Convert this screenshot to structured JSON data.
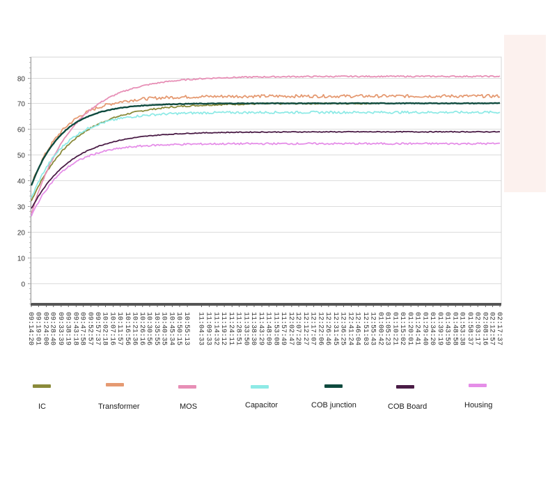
{
  "chart_data": {
    "type": "line",
    "title": "",
    "xlabel": "",
    "ylabel": "",
    "ylim": [
      -8,
      88
    ],
    "yticks": [
      0,
      10,
      20,
      30,
      40,
      50,
      60,
      70,
      80
    ],
    "grid": true,
    "legend_position": "bottom",
    "x_tick_labels": [
      "09:14:20",
      "09:19:01",
      "09:24:00",
      "09:28:40",
      "09:33:39",
      "09:38:19",
      "09:43:18",
      "09:47:58",
      "09:52:57",
      "09:57:37",
      "10:02:18",
      "10:07:16",
      "10:11:57",
      "10:16:56",
      "10:21:36",
      "10:26:16",
      "10:30:56",
      "10:35:55",
      "10:40:35",
      "10:45:34",
      "10:50:15",
      "10:55:13",
      "11:04:33",
      "11:09:33",
      "11:14:32",
      "11:19:12",
      "11:24:11",
      "11:28:51",
      "11:33:50",
      "11:38:30",
      "11:43:29",
      "11:48:09",
      "11:53:08",
      "11:57:49",
      "12:02:47",
      "12:07:28",
      "12:12:27",
      "12:17:07",
      "12:22:06",
      "12:26:46",
      "12:31:45",
      "12:36:25",
      "12:41:24",
      "12:46:04",
      "12:51:03",
      "12:55:43",
      "01:00:42",
      "01:05:23",
      "01:10:21",
      "01:15:02",
      "01:20:01",
      "01:24:41",
      "01:29:40",
      "01:34:20",
      "01:39:19",
      "01:43:59",
      "01:48:58",
      "01:53:38",
      "01:58:37",
      "02:03:17",
      "02:08:16",
      "02:12:57",
      "02:17:37"
    ],
    "x_tick_minutes_since_start": [
      0,
      4.7,
      9.7,
      14.3,
      19.3,
      24,
      29,
      33.6,
      38.6,
      43.3,
      48,
      53,
      57.6,
      62.6,
      67.3,
      72,
      76.6,
      81.6,
      86.3,
      91.2,
      96,
      101,
      110.2,
      115.2,
      120.2,
      124.9,
      129.9,
      134.5,
      139.5,
      144.2,
      149.2,
      153.8,
      158.8,
      163.5,
      168.5,
      173.1,
      178.1,
      182.8,
      187.8,
      192.4,
      197.4,
      202.1,
      207.1,
      211.7,
      216.7,
      221.4,
      226.4,
      231,
      236,
      240.7,
      245.7,
      250.4,
      255.3,
      260,
      265,
      269.7,
      274.6,
      279.3,
      284.3,
      289,
      294,
      298.6,
      303.3
    ],
    "series": [
      {
        "name": "IC",
        "color": "#8a8a3a",
        "start": 32,
        "end": 70,
        "tau": 28,
        "noise": 0.3,
        "stop_minute": 225,
        "line_width": 1.8
      },
      {
        "name": "Transformer",
        "color": "#e59a72",
        "start": 38,
        "end": 72.8,
        "tau": 21,
        "noise": 0.6,
        "stop_minute": 303.3,
        "line_width": 1.8
      },
      {
        "name": "MOS",
        "color": "#e78fb6",
        "start": 27,
        "end": 80.5,
        "tau": 27,
        "noise": 0.25,
        "stop_minute": 303.3,
        "line_width": 1.8
      },
      {
        "name": "Capacitor",
        "color": "#8eeae6",
        "start": 33,
        "end": 66.5,
        "tau": 22,
        "noise": 0.45,
        "stop_minute": 303.3,
        "line_width": 1.8
      },
      {
        "name": "COB  junction",
        "color": "#0e4a3e",
        "start": 38,
        "end": 70,
        "tau": 20,
        "noise": 0.12,
        "stop_minute": 303.3,
        "line_width": 2.4
      },
      {
        "name": "COB Board",
        "color": "#4a1c46",
        "start": 29,
        "end": 58.9,
        "tau": 26,
        "noise": 0.15,
        "stop_minute": 303.3,
        "line_width": 1.8
      },
      {
        "name": "Housing",
        "color": "#e58ee8",
        "start": 26,
        "end": 54.3,
        "tau": 21,
        "noise": 0.35,
        "stop_minute": 303.3,
        "line_width": 1.8
      }
    ]
  },
  "legend": [
    {
      "label": "IC",
      "color": "#8a8a3a"
    },
    {
      "label": "Transformer",
      "color": "#e59a72"
    },
    {
      "label": "MOS",
      "color": "#e78fb6"
    },
    {
      "label": "Capacitor",
      "color": "#8eeae6"
    },
    {
      "label": "COB  junction",
      "color": "#0e4a3e"
    },
    {
      "label": "COB Board",
      "color": "#4a1c46"
    },
    {
      "label": "Housing",
      "color": "#e58ee8"
    }
  ]
}
